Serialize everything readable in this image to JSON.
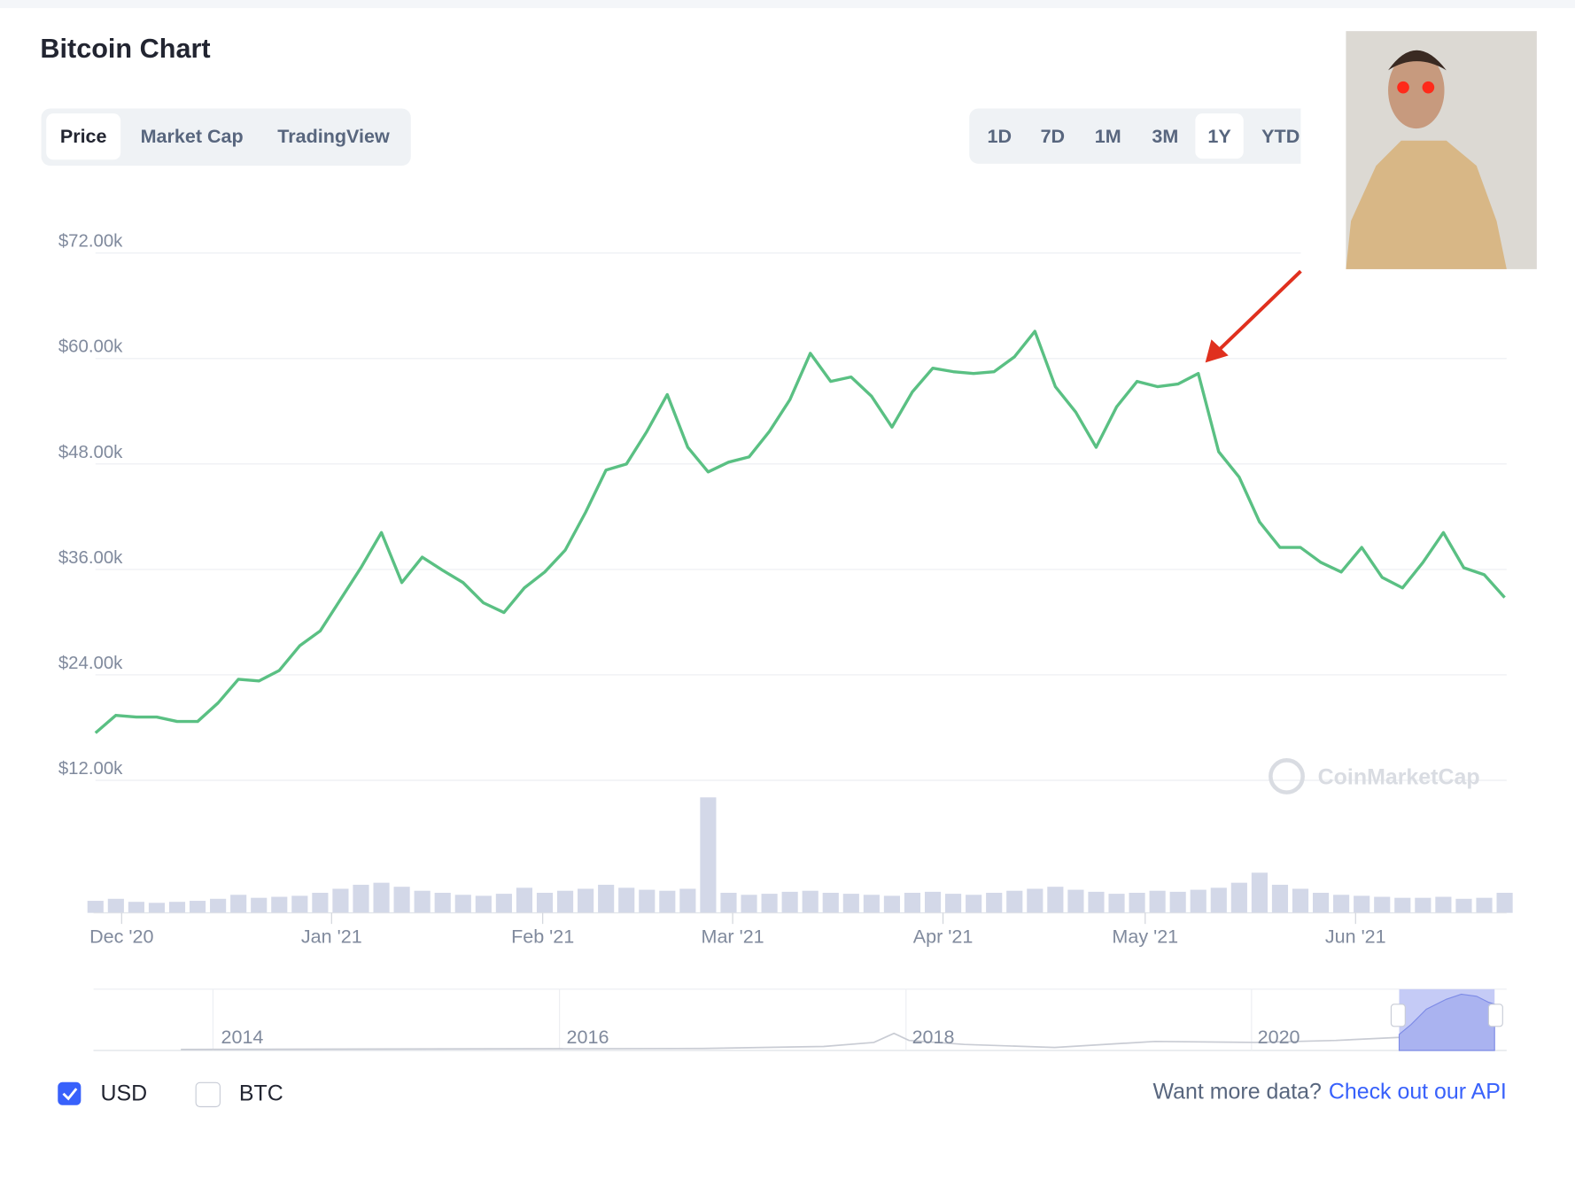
{
  "header": {
    "title": "Bitcoin Chart"
  },
  "tabs": [
    "Price",
    "Market Cap",
    "TradingView"
  ],
  "active_tab": 0,
  "ranges": [
    "1D",
    "7D",
    "1M",
    "3M",
    "1Y",
    "YTD"
  ],
  "active_range": 4,
  "chart_data": {
    "type": "line",
    "color": "#5ac083",
    "values": [
      17400,
      19400,
      19200,
      19200,
      18700,
      18700,
      20800,
      23500,
      23300,
      24500,
      27300,
      29000,
      32600,
      36200,
      40200,
      34500,
      37400,
      35900,
      34500,
      32200,
      31100,
      33900,
      35700,
      38200,
      42500,
      47300,
      48000,
      51700,
      55900,
      49900,
      47100,
      48200,
      48800,
      51700,
      55300,
      60600,
      57400,
      57900,
      55700,
      52200,
      56200,
      58900,
      58500,
      58300,
      58500,
      60200,
      63100,
      56800,
      53900,
      49900,
      54500,
      57400,
      56800,
      57100,
      58300,
      49400,
      46500,
      41400,
      38500,
      38500,
      36800,
      35700,
      38500,
      35100,
      33900,
      36800,
      40200,
      36200,
      35400,
      32800
    ],
    "volume": [
      12,
      14,
      11,
      10,
      11,
      12,
      14,
      18,
      15,
      16,
      17,
      20,
      24,
      28,
      30,
      26,
      22,
      20,
      18,
      17,
      19,
      25,
      20,
      22,
      24,
      28,
      25,
      23,
      22,
      24,
      115,
      20,
      18,
      19,
      21,
      22,
      20,
      19,
      18,
      17,
      20,
      21,
      19,
      18,
      20,
      22,
      24,
      26,
      23,
      21,
      19,
      20,
      22,
      21,
      23,
      25,
      30,
      40,
      28,
      24,
      20,
      18,
      17,
      16,
      15,
      15,
      16,
      14,
      15,
      20
    ],
    "volume_color": "#d3d8e8",
    "xlim": [
      0,
      69
    ],
    "xticks": [
      {
        "value": 1.28,
        "label": "Dec '20"
      },
      {
        "value": 11.56,
        "label": "Jan '21"
      },
      {
        "value": 21.9,
        "label": "Feb '21"
      },
      {
        "value": 31.2,
        "label": "Mar '21"
      },
      {
        "value": 41.5,
        "label": "Apr '21"
      },
      {
        "value": 51.4,
        "label": "May '21"
      },
      {
        "value": 61.7,
        "label": "Jun '21"
      }
    ],
    "ylim": [
      12000,
      72000
    ],
    "yticks": [
      {
        "value": 12000,
        "label": "$12.00k"
      },
      {
        "value": 24000,
        "label": "$24.00k"
      },
      {
        "value": 36000,
        "label": "$36.00k"
      },
      {
        "value": 48000,
        "label": "$48.00k"
      },
      {
        "value": 60000,
        "label": "$60.00k"
      },
      {
        "value": 72000,
        "label": "$72.00k"
      }
    ],
    "grid": true,
    "watermark": "CoinMarketCap"
  },
  "navigator": {
    "labels": [
      "2014",
      "2016",
      "2018",
      "2020"
    ]
  },
  "currencies": [
    "USD",
    "BTC"
  ],
  "checked": [
    true,
    false
  ],
  "footer": {
    "prompt": "Want more data?",
    "link": "Check out our API"
  }
}
